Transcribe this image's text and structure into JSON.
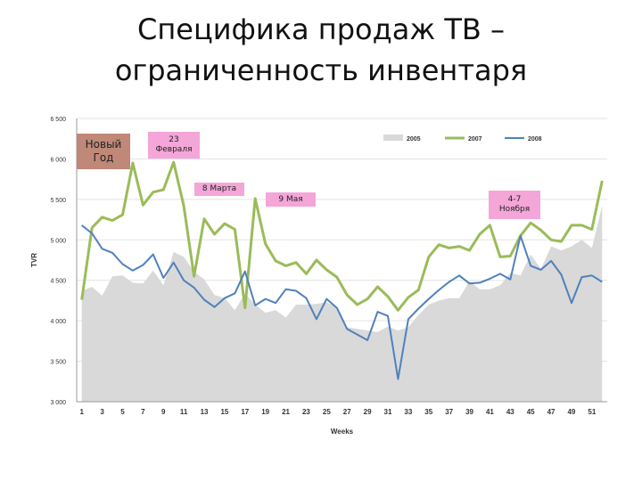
{
  "slide": {
    "title_line1": "Специфика продаж ТВ –",
    "title_line2": "ограниченность инвентаря"
  },
  "annotations": [
    {
      "id": "new-year",
      "text_line1": "Новый",
      "text_line2": "Год"
    },
    {
      "id": "feb-23",
      "text_line1": "23",
      "text_line2": "Февраля"
    },
    {
      "id": "mar-8",
      "text_line1": "8 Марта",
      "text_line2": ""
    },
    {
      "id": "may-9",
      "text_line1": "9 Мая",
      "text_line2": ""
    },
    {
      "id": "nov-4-7",
      "text_line1": "4-7",
      "text_line2": "Ноября"
    }
  ],
  "chart_data": {
    "type": "line",
    "xlabel": "Weeks",
    "ylabel": "TVR",
    "ylim": [
      3000,
      6500
    ],
    "yticks": [
      3000,
      3500,
      4000,
      4500,
      5000,
      5500,
      6000,
      6500
    ],
    "ytick_labels": [
      "3 000",
      "3 500",
      "4 000",
      "4 500",
      "5 000",
      "5 500",
      "6 000",
      "6 500"
    ],
    "xticks": [
      1,
      3,
      5,
      7,
      9,
      11,
      13,
      15,
      17,
      19,
      21,
      23,
      25,
      27,
      29,
      31,
      33,
      35,
      37,
      39,
      41,
      43,
      45,
      47,
      49,
      51
    ],
    "x": [
      1,
      2,
      3,
      4,
      5,
      6,
      7,
      8,
      9,
      10,
      11,
      12,
      13,
      14,
      15,
      16,
      17,
      18,
      19,
      20,
      21,
      22,
      23,
      24,
      25,
      26,
      27,
      28,
      29,
      30,
      31,
      32,
      33,
      34,
      35,
      36,
      37,
      38,
      39,
      40,
      41,
      42,
      43,
      44,
      45,
      46,
      47,
      48,
      49,
      50,
      51,
      52
    ],
    "legend_position": "top-right",
    "grid": "horizontal",
    "series": [
      {
        "name": "2005",
        "kind": "area",
        "color": "#d9d9d9",
        "values": [
          4370,
          4420,
          4310,
          4550,
          4560,
          4470,
          4460,
          4620,
          4440,
          4850,
          4790,
          4610,
          4510,
          4320,
          4280,
          4130,
          4340,
          4200,
          4100,
          4130,
          4040,
          4200,
          4200,
          4210,
          4230,
          4170,
          3920,
          3900,
          3880,
          3860,
          3930,
          3880,
          3920,
          4070,
          4200,
          4250,
          4280,
          4280,
          4490,
          4390,
          4390,
          4440,
          4590,
          4560,
          4820,
          4640,
          4920,
          4870,
          4920,
          5000,
          4900,
          5420
        ]
      },
      {
        "name": "2007",
        "kind": "line",
        "color": "#9bbb59",
        "values": [
          4260,
          5150,
          5280,
          5240,
          5310,
          5950,
          5430,
          5590,
          5620,
          5960,
          5420,
          4550,
          5260,
          5070,
          5200,
          5130,
          4160,
          5510,
          4950,
          4740,
          4680,
          4720,
          4580,
          4750,
          4630,
          4540,
          4320,
          4200,
          4270,
          4420,
          4300,
          4130,
          4290,
          4380,
          4790,
          4940,
          4900,
          4920,
          4870,
          5070,
          5180,
          4790,
          4800,
          5050,
          5210,
          5120,
          5000,
          4980,
          5180,
          5180,
          5130,
          5730
        ]
      },
      {
        "name": "2008",
        "kind": "line",
        "color": "#4f81bd",
        "values": [
          5180,
          5080,
          4890,
          4840,
          4700,
          4620,
          4690,
          4820,
          4530,
          4720,
          4500,
          4410,
          4260,
          4170,
          4280,
          4340,
          4610,
          4190,
          4270,
          4220,
          4390,
          4370,
          4280,
          4020,
          4270,
          4160,
          3900,
          3830,
          3760,
          4110,
          4060,
          3280,
          4020,
          4150,
          4270,
          4380,
          4480,
          4560,
          4460,
          4470,
          4520,
          4580,
          4510,
          5050,
          4680,
          4630,
          4740,
          4570,
          4220,
          4540,
          4560,
          4480
        ]
      }
    ]
  }
}
